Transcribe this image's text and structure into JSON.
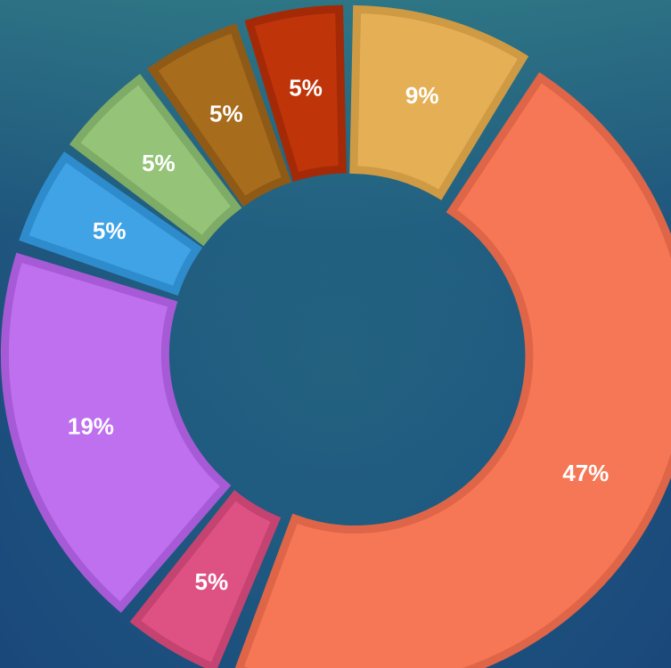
{
  "chart_data": {
    "type": "pie",
    "variant": "donut",
    "slices": [
      {
        "label": "9%",
        "value": 9,
        "color": "#e5b055",
        "edge": "#cf9a44"
      },
      {
        "label": "47%",
        "value": 47,
        "color": "#f57756",
        "edge": "#de6547"
      },
      {
        "label": "5%",
        "value": 5,
        "color": "#de5283",
        "edge": "#c54371"
      },
      {
        "label": "19%",
        "value": 19,
        "color": "#bf70ef",
        "edge": "#a65ad6"
      },
      {
        "label": "5%",
        "value": 5,
        "color": "#3fa3e6",
        "edge": "#2e8ccd"
      },
      {
        "label": "5%",
        "value": 5,
        "color": "#95c479",
        "edge": "#7eab66"
      },
      {
        "label": "5%",
        "value": 5,
        "color": "#a86c1d",
        "edge": "#8f5a16"
      },
      {
        "label": "5%",
        "value": 5,
        "color": "#c0340a",
        "edge": "#a42a07"
      }
    ],
    "legend": "none",
    "background": "#1f5a80"
  }
}
